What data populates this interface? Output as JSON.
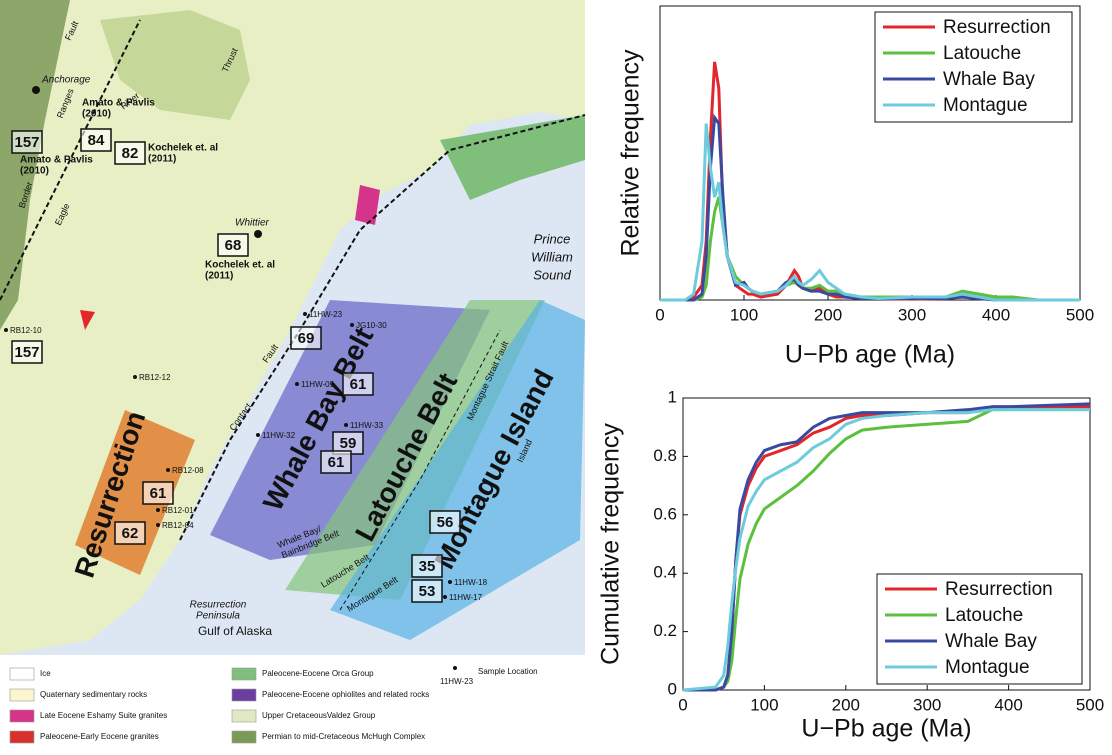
{
  "chart_data": [
    {
      "type": "line",
      "y_label": "Relative frequency",
      "x_label": "U−Pb age (Ma)",
      "x": [
        0,
        30,
        40,
        50,
        55,
        60,
        65,
        70,
        75,
        80,
        90,
        100,
        105,
        110,
        120,
        140,
        150,
        160,
        165,
        170,
        180,
        190,
        200,
        210,
        220,
        240,
        260,
        300,
        340,
        360,
        380,
        400,
        420,
        450,
        500
      ],
      "xlim": [
        0,
        500
      ],
      "xticks": [
        0,
        100,
        200,
        300,
        400,
        500
      ],
      "ylim": [
        0,
        1
      ],
      "legend": "upper right",
      "series": [
        {
          "name": "Resurrection",
          "color": "#e3262b",
          "values": [
            0,
            0,
            0.01,
            0.05,
            0.2,
            0.55,
            0.81,
            0.72,
            0.3,
            0.15,
            0.05,
            0.03,
            0.02,
            0.02,
            0.01,
            0.02,
            0.05,
            0.1,
            0.08,
            0.04,
            0.03,
            0.04,
            0.02,
            0.01,
            0.01,
            0.005,
            0.005,
            0.003,
            0.005,
            0.01,
            0.005,
            0.002,
            0.005,
            0,
            0
          ]
        },
        {
          "name": "Latouche",
          "color": "#5cbf3d",
          "values": [
            0,
            0,
            0,
            0.01,
            0.05,
            0.2,
            0.3,
            0.35,
            0.25,
            0.15,
            0.08,
            0.05,
            0.04,
            0.03,
            0.02,
            0.03,
            0.05,
            0.06,
            0.05,
            0.04,
            0.04,
            0.05,
            0.03,
            0.03,
            0.02,
            0.01,
            0.01,
            0.01,
            0.01,
            0.03,
            0.02,
            0.01,
            0.01,
            0,
            0
          ]
        },
        {
          "name": "Whale Bay",
          "color": "#3a4a9f",
          "values": [
            0,
            0,
            0,
            0.02,
            0.15,
            0.45,
            0.62,
            0.6,
            0.35,
            0.15,
            0.05,
            0.06,
            0.04,
            0.03,
            0.02,
            0.03,
            0.06,
            0.07,
            0.05,
            0.04,
            0.03,
            0.03,
            0.02,
            0.02,
            0.01,
            0.005,
            0.005,
            0.005,
            0.005,
            0.01,
            0.005,
            0,
            0,
            0,
            0
          ]
        },
        {
          "name": "Montague",
          "color": "#6ccbdc",
          "values": [
            0,
            0,
            0.02,
            0.2,
            0.6,
            0.45,
            0.35,
            0.4,
            0.25,
            0.15,
            0.06,
            0.05,
            0.04,
            0.03,
            0.02,
            0.03,
            0.05,
            0.08,
            0.06,
            0.05,
            0.07,
            0.1,
            0.06,
            0.04,
            0.02,
            0.01,
            0.005,
            0.01,
            0.01,
            0.02,
            0.01,
            0,
            0,
            0,
            0
          ]
        }
      ]
    },
    {
      "type": "line",
      "y_label": "Cumulative frequency",
      "x_label": "U−Pb age (Ma)",
      "x": [
        0,
        40,
        50,
        55,
        60,
        65,
        70,
        80,
        90,
        100,
        120,
        140,
        160,
        180,
        200,
        220,
        250,
        300,
        350,
        380,
        400,
        500
      ],
      "xlim": [
        0,
        500
      ],
      "xticks": [
        0,
        100,
        200,
        300,
        400,
        500
      ],
      "ylim": [
        0,
        1
      ],
      "yticks": [
        0,
        0.2,
        0.4,
        0.6,
        0.8,
        1
      ],
      "legend": "lower right",
      "series": [
        {
          "name": "Resurrection",
          "color": "#e3262b",
          "values": [
            0,
            0,
            0.01,
            0.05,
            0.2,
            0.45,
            0.6,
            0.7,
            0.76,
            0.8,
            0.82,
            0.84,
            0.88,
            0.9,
            0.93,
            0.94,
            0.94,
            0.95,
            0.95,
            0.97,
            0.97,
            0.97
          ]
        },
        {
          "name": "Latouche",
          "color": "#5cbf3d",
          "values": [
            0,
            0,
            0.01,
            0.03,
            0.1,
            0.25,
            0.38,
            0.5,
            0.57,
            0.62,
            0.66,
            0.7,
            0.75,
            0.81,
            0.86,
            0.89,
            0.9,
            0.91,
            0.92,
            0.96,
            0.96,
            0.96
          ]
        },
        {
          "name": "Whale Bay",
          "color": "#3a4a9f",
          "values": [
            0,
            0,
            0.01,
            0.05,
            0.2,
            0.45,
            0.62,
            0.72,
            0.78,
            0.82,
            0.84,
            0.85,
            0.9,
            0.93,
            0.94,
            0.95,
            0.95,
            0.95,
            0.96,
            0.97,
            0.97,
            0.98
          ]
        },
        {
          "name": "Montague",
          "color": "#6ccbdc",
          "values": [
            0,
            0.01,
            0.05,
            0.15,
            0.3,
            0.42,
            0.52,
            0.63,
            0.68,
            0.72,
            0.75,
            0.78,
            0.83,
            0.86,
            0.91,
            0.93,
            0.94,
            0.95,
            0.95,
            0.96,
            0.96,
            0.96
          ]
        }
      ]
    }
  ],
  "map": {
    "places": [
      "Anchorage",
      "Whittier",
      [
        "Prince",
        "William",
        "Sound"
      ],
      [
        "Resurrection",
        "Peninsula"
      ],
      "Gulf of Alaska"
    ],
    "structures": [
      "Fault",
      "Ranges",
      "River",
      "Thrust",
      "Border",
      "Eagle",
      "Contact",
      "Fault",
      [
        "Whale Bay/",
        "Bainbridge Belt"
      ],
      "Latouche Belt",
      "Montague Belt",
      "Montague Strait Fault",
      "Island"
    ],
    "citations": [
      [
        "Amato & Pavlis",
        "(2010)"
      ],
      [
        "Amato & Pavlis",
        "(2010)"
      ],
      [
        "Kochelek et. al",
        "(2011)"
      ],
      [
        "Kochelek et. al",
        "(2011)"
      ]
    ],
    "belts": [
      "Resurrection",
      "Whale Bay Belt",
      "Latouche Belt",
      "Montague Island"
    ],
    "ages": [
      157,
      84,
      82,
      68,
      157,
      69,
      61,
      59,
      61,
      61,
      62,
      56,
      35,
      53
    ],
    "samples": [
      "RB12-10",
      "RB12-12",
      "11HW-23",
      "JG10-30",
      "11HW-09",
      "11HW-33",
      "11HW-32",
      "RB12-08",
      "RB12-01",
      "RB12-04",
      "11HW-18",
      "11HW-17"
    ],
    "legend": [
      "Ice",
      "Quaternary sedimentary rocks",
      "Late Eocene Eshamy Suite granites",
      "Paleocene-Early Eocene granites",
      "Paleocene-Eocene Orca Group",
      "Paleocene-Eocene ophiolites and related rocks",
      "Upper CretaceousValdez Group",
      "Permian to mid-Cretaceous McHugh Complex"
    ],
    "sample_legend": {
      "label": "Sample Location",
      "example": "11HW-23"
    }
  }
}
